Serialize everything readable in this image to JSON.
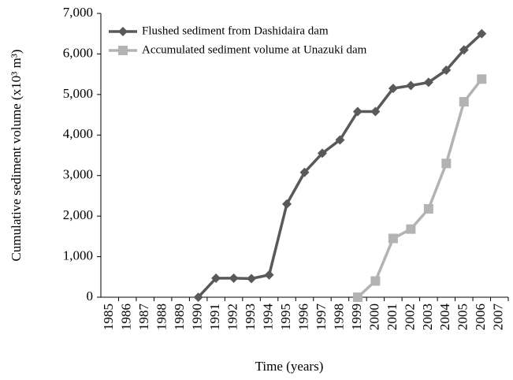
{
  "chart_data": {
    "type": "line",
    "xlabel": "Time (years)",
    "ylabel": "Cumulative sediment volume (x10³ m³)",
    "categories": [
      "1985",
      "1986",
      "1987",
      "1988",
      "1989",
      "1990",
      "1991",
      "1992",
      "1993",
      "1994",
      "1995",
      "1996",
      "1997",
      "1998",
      "1999",
      "2000",
      "2001",
      "2002",
      "2003",
      "2004",
      "2005",
      "2006",
      "2007"
    ],
    "series": [
      {
        "name": "Flushed sediment from Dashidaira dam",
        "color": "#595959",
        "marker": "diamond",
        "values": [
          null,
          null,
          null,
          null,
          null,
          0,
          470,
          470,
          460,
          550,
          2300,
          3080,
          3550,
          3880,
          4580,
          4580,
          5150,
          5220,
          5300,
          5600,
          6100,
          6500,
          null
        ]
      },
      {
        "name": "Accumulated sediment volume at Unazuki dam",
        "color": "#b3b3b3",
        "marker": "square",
        "values": [
          null,
          null,
          null,
          null,
          null,
          null,
          null,
          null,
          null,
          null,
          null,
          null,
          null,
          null,
          0,
          400,
          1450,
          1680,
          2180,
          3300,
          4820,
          5380,
          null
        ]
      }
    ],
    "ylim": [
      0,
      7000
    ],
    "yticks": [
      0,
      {
        "value": 1000,
        "label": "1,000"
      },
      {
        "value": 2000,
        "label": "2,000"
      },
      {
        "value": 3000,
        "label": "3,000"
      },
      {
        "value": 4000,
        "label": "4,000"
      },
      {
        "value": 5000,
        "label": "5,000"
      },
      {
        "value": 6000,
        "label": "6,000"
      },
      {
        "value": 7000,
        "label": "7,000"
      }
    ],
    "grid": false,
    "legend": "upper left"
  }
}
